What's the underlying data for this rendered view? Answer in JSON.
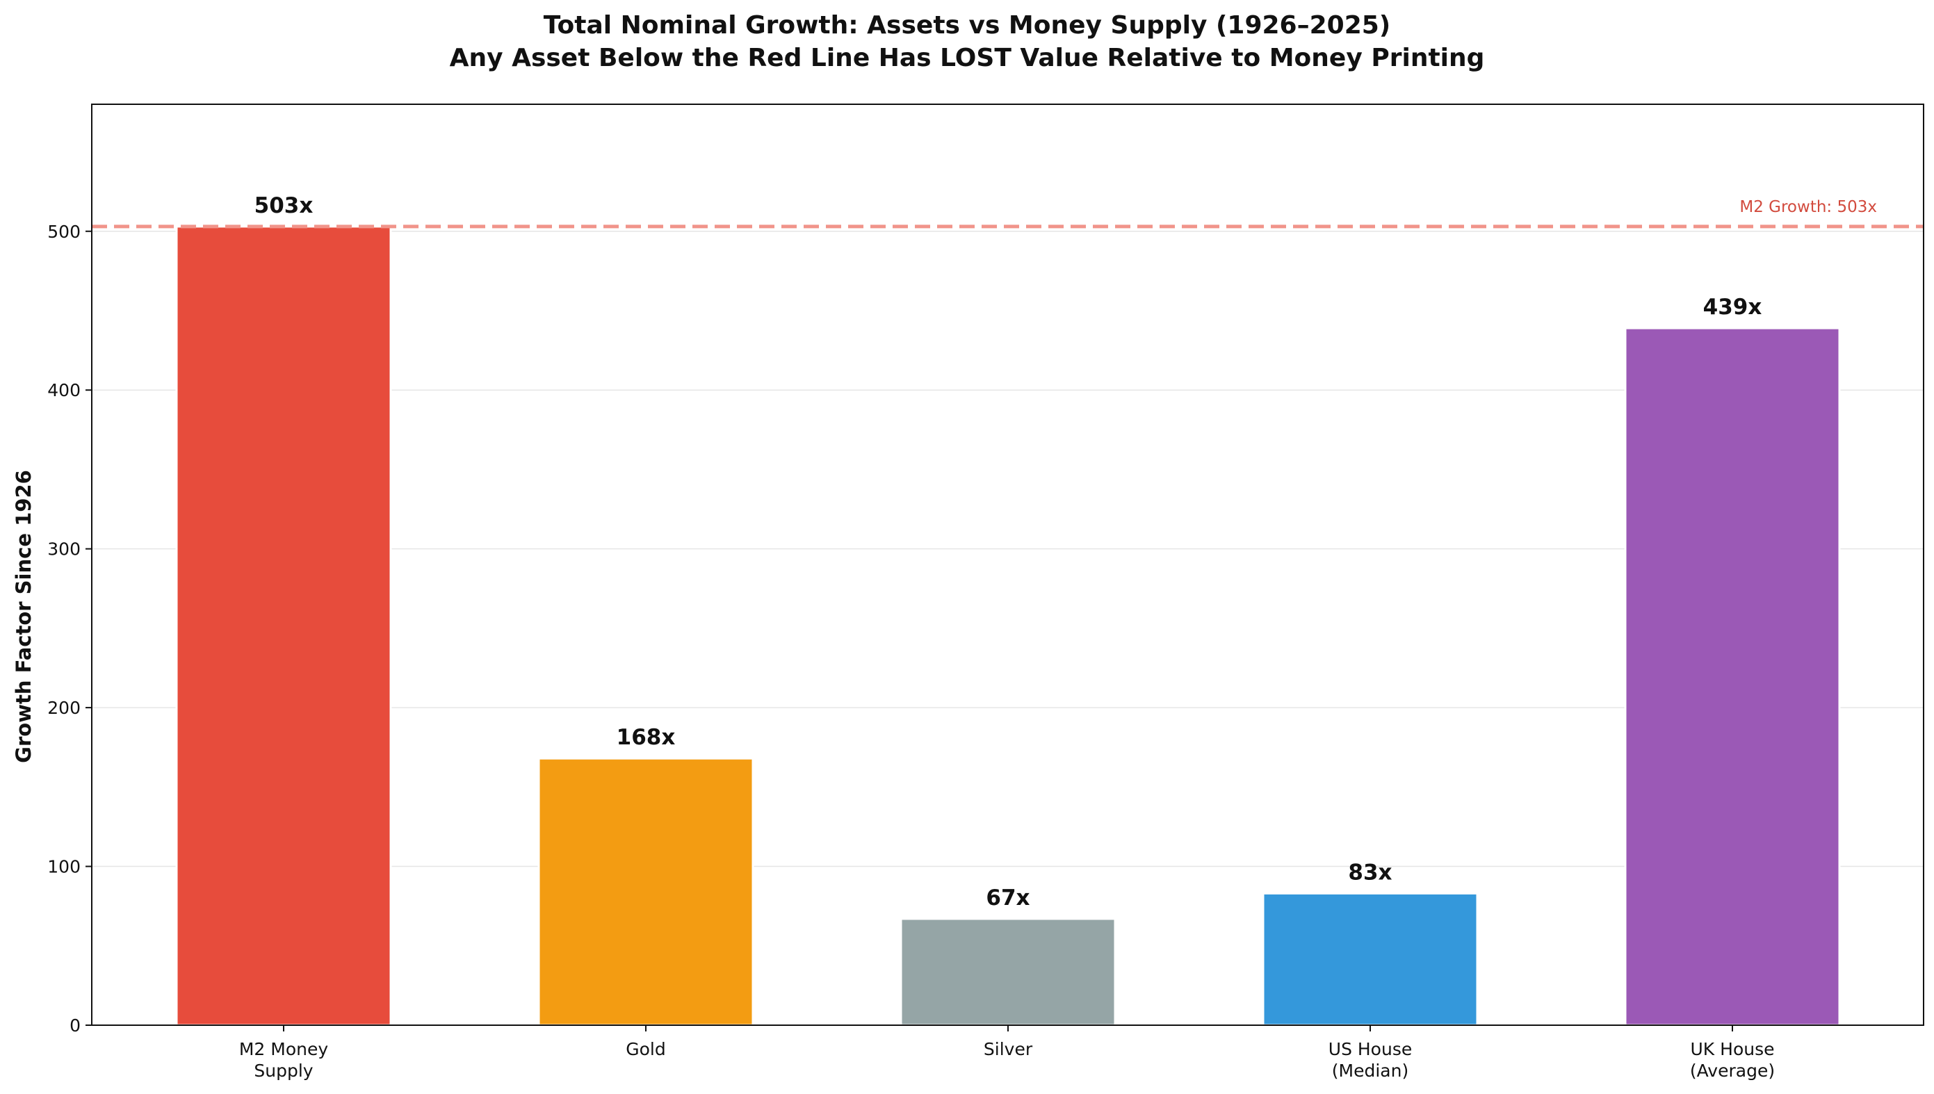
{
  "chart_data": {
    "type": "bar",
    "title_line1": "Total Nominal Growth: Assets vs Money Supply (1926–2025)",
    "title_line2": "Any Asset Below the Red Line Has LOST Value Relative to Money Printing",
    "xlabel": "",
    "ylabel": "Growth Factor Since 1926",
    "ylim": [
      0,
      580
    ],
    "yticks": [
      0,
      100,
      200,
      300,
      400,
      500
    ],
    "grid": "y",
    "categories": [
      [
        "M2 Money",
        "Supply"
      ],
      [
        "Gold"
      ],
      [
        "Silver"
      ],
      [
        "US House",
        "(Median)"
      ],
      [
        "UK House",
        "(Average)"
      ]
    ],
    "values": [
      503,
      168,
      67,
      83,
      439
    ],
    "data_labels": [
      "503x",
      "168x",
      "67x",
      "83x",
      "439x"
    ],
    "colors": [
      "#e74c3c",
      "#f39c12",
      "#95a5a6",
      "#3498db",
      "#9b59b6"
    ],
    "reference_line": {
      "value": 503,
      "label": "M2 Growth: 503x",
      "color": "#f1948a",
      "style": "dashed"
    }
  }
}
